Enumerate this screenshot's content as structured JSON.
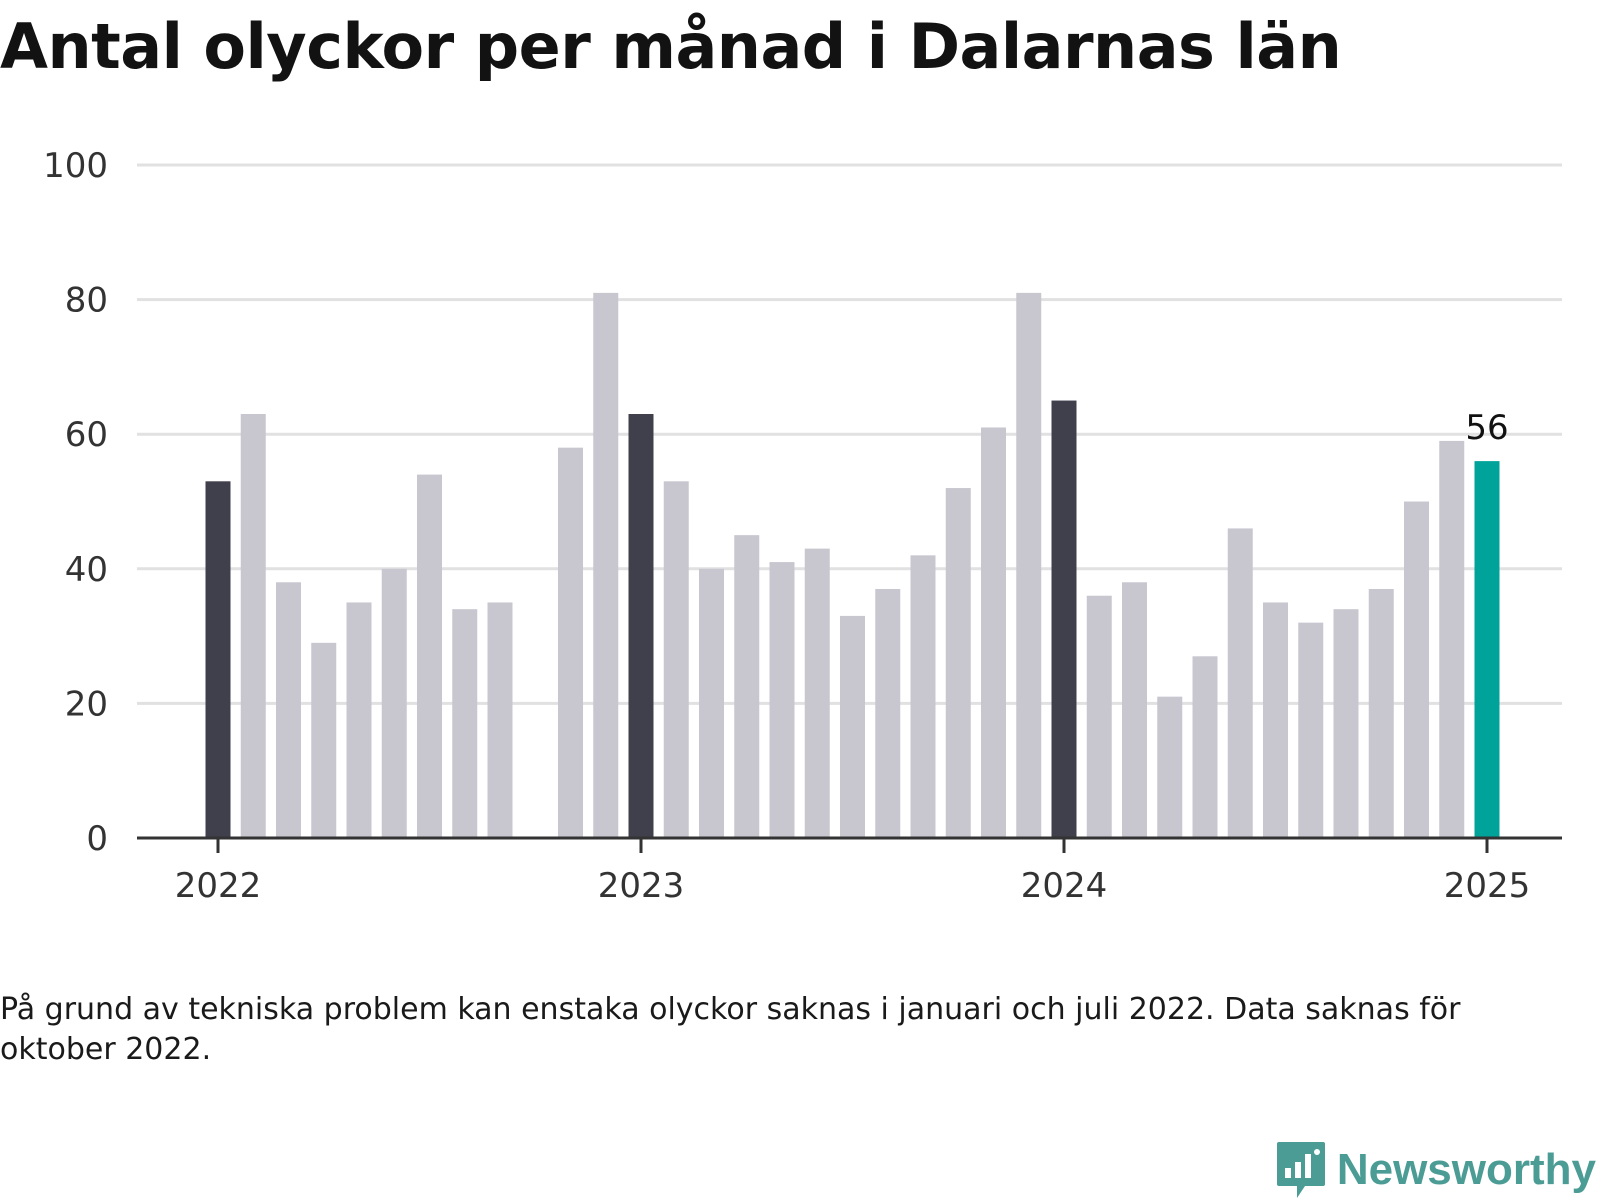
{
  "title": "Antal olyckor per månad i Dalarnas län",
  "footnote": "På grund av tekniska problem kan enstaka olyckor saknas i januari och juli 2022. Data saknas för oktober 2022.",
  "brand": {
    "name": "Newsworthy",
    "icon": "newsworthy-logo-icon"
  },
  "colors": {
    "january": "#403f4c",
    "regular": "#c8c7d0",
    "latest": "#00a39a",
    "grid": "#e1e1e1",
    "axis": "#333333",
    "brand": "#4c9c96"
  },
  "chart_data": {
    "type": "bar",
    "title": "Antal olyckor per månad i Dalarnas län",
    "ylim": [
      0,
      100
    ],
    "y_ticks": [
      0,
      20,
      40,
      60,
      80,
      100
    ],
    "x_tick_labels": [
      "2022",
      "2023",
      "2024",
      "2025"
    ],
    "grid": true,
    "annotation": "56",
    "categories": [
      "2022-01",
      "2022-02",
      "2022-03",
      "2022-04",
      "2022-05",
      "2022-06",
      "2022-07",
      "2022-08",
      "2022-09",
      "2022-10",
      "2022-11",
      "2022-12",
      "2023-01",
      "2023-02",
      "2023-03",
      "2023-04",
      "2023-05",
      "2023-06",
      "2023-07",
      "2023-08",
      "2023-09",
      "2023-10",
      "2023-11",
      "2023-12",
      "2024-01",
      "2024-02",
      "2024-03",
      "2024-04",
      "2024-05",
      "2024-06",
      "2024-07",
      "2024-08",
      "2024-09",
      "2024-10",
      "2024-11",
      "2024-12",
      "2025-01"
    ],
    "values": [
      53,
      63,
      38,
      29,
      35,
      40,
      54,
      34,
      35,
      null,
      58,
      81,
      63,
      53,
      40,
      45,
      41,
      43,
      33,
      37,
      42,
      52,
      61,
      81,
      65,
      36,
      38,
      21,
      27,
      46,
      35,
      32,
      34,
      37,
      50,
      59,
      56
    ]
  }
}
